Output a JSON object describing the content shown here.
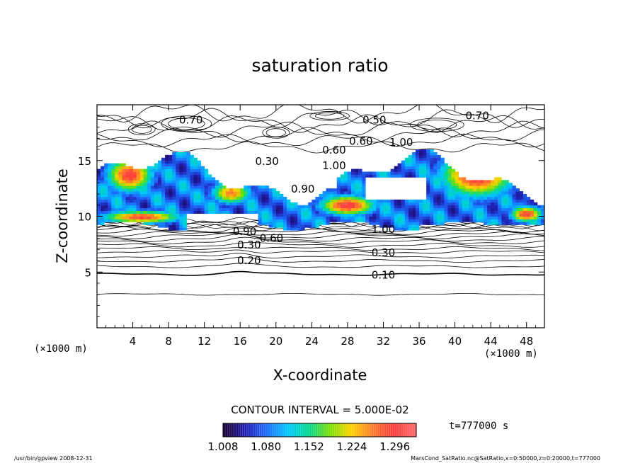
{
  "chart_data": {
    "type": "heatmap",
    "title": "saturation ratio",
    "xlabel": "X-coordinate",
    "ylabel": "Z-coordinate",
    "x_unit": "(×1000 m)",
    "y_unit": "(×1000 m)",
    "xlim": [
      0,
      50
    ],
    "ylim": [
      0,
      20
    ],
    "x_ticks": [
      4,
      8,
      12,
      16,
      20,
      24,
      28,
      32,
      36,
      40,
      44,
      48
    ],
    "y_ticks": [
      5,
      10,
      15
    ],
    "contour_interval_text": "CONTOUR INTERVAL = 5.000E-02",
    "colorbar": {
      "min": 1.008,
      "max": 1.332,
      "tick_values": [
        1.008,
        1.08,
        1.152,
        1.224,
        1.296
      ],
      "tick_labels": [
        "1.008",
        "1.080",
        "1.152",
        "1.224",
        "1.296"
      ]
    },
    "time_label": "t=777000 s",
    "contour_labels": [
      {
        "text": "0.70",
        "x": 10.5,
        "z": 18.6
      },
      {
        "text": "0.50",
        "x": 31.0,
        "z": 18.6
      },
      {
        "text": "0.70",
        "x": 42.5,
        "z": 19.0
      },
      {
        "text": "0.60",
        "x": 29.5,
        "z": 16.7
      },
      {
        "text": "1.00",
        "x": 34.0,
        "z": 16.6
      },
      {
        "text": "0.60",
        "x": 26.5,
        "z": 15.9
      },
      {
        "text": "0.30",
        "x": 19.0,
        "z": 14.9
      },
      {
        "text": "1.00",
        "x": 26.5,
        "z": 14.5
      },
      {
        "text": "0.90",
        "x": 23.0,
        "z": 12.4
      },
      {
        "text": "0.90",
        "x": 16.5,
        "z": 8.6
      },
      {
        "text": "0.60",
        "x": 19.5,
        "z": 8.0
      },
      {
        "text": "0.30",
        "x": 17.0,
        "z": 7.4
      },
      {
        "text": "1.00",
        "x": 32.0,
        "z": 8.8
      },
      {
        "text": "0.30",
        "x": 32.0,
        "z": 6.7
      },
      {
        "text": "0.20",
        "x": 17.0,
        "z": 6.0
      },
      {
        "text": "0.10",
        "x": 32.0,
        "z": 4.7
      }
    ],
    "high_regions": [
      {
        "x": [
          0.8,
          6.5
        ],
        "z": [
          12.0,
          15.4
        ],
        "peak": 1.3
      },
      {
        "x": [
          12.5,
          17.5
        ],
        "z": [
          11.0,
          13.2
        ],
        "peak": 1.26
      },
      {
        "x": [
          24.5,
          31.5
        ],
        "z": [
          10.0,
          12.0
        ],
        "peak": 1.31
      },
      {
        "x": [
          38.0,
          47.0
        ],
        "z": [
          11.5,
          16.0
        ],
        "peak": 1.32
      },
      {
        "x": [
          46.0,
          50.0
        ],
        "z": [
          9.4,
          11.0
        ],
        "peak": 1.3
      },
      {
        "x": [
          0.0,
          10.0
        ],
        "z": [
          9.3,
          10.6
        ],
        "peak": 1.29
      }
    ]
  },
  "footer": {
    "left": "/usr/bin/gpview   2008-12-31",
    "right": "MarsCond_SatRatio.nc@SatRatio,x=0:50000,z=0:20000,t=777000"
  },
  "colors": {
    "background": "#ffffff",
    "contour": "#000000",
    "colormap": [
      "#1a0033",
      "#2020b0",
      "#1e6cff",
      "#00c8ff",
      "#00d890",
      "#7ee000",
      "#ffd200",
      "#ff7a2a",
      "#ff3c3c",
      "#ff6a6a"
    ]
  }
}
